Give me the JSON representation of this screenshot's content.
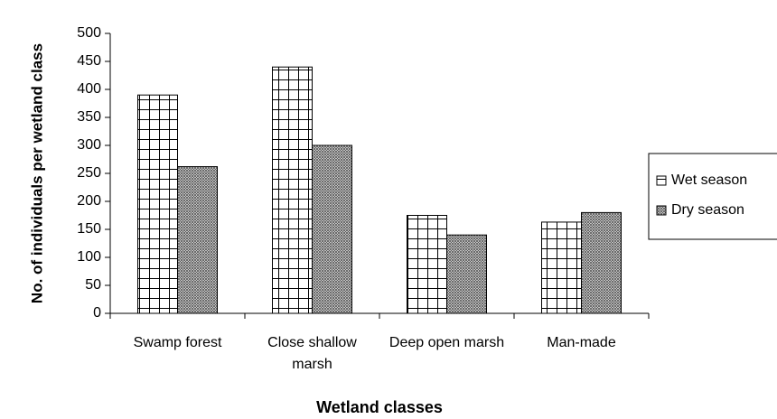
{
  "chart_data": {
    "type": "bar",
    "xlabel": "Wetland classes",
    "ylabel": "No. of individuals per wetland class",
    "categories": [
      "Swamp forest",
      "Close shallow marsh",
      "Deep open marsh",
      "Man-made"
    ],
    "series": [
      {
        "name": "Wet season",
        "color": "#ffffff",
        "values": [
          390,
          440,
          175,
          163
        ]
      },
      {
        "name": "Dry season",
        "color": "#9a9a9a",
        "values": [
          262,
          300,
          140,
          180
        ]
      }
    ],
    "ylim": [
      0,
      500
    ],
    "yticks": [
      0,
      50,
      100,
      150,
      200,
      250,
      300,
      350,
      400,
      450,
      500
    ],
    "legend": "right"
  }
}
